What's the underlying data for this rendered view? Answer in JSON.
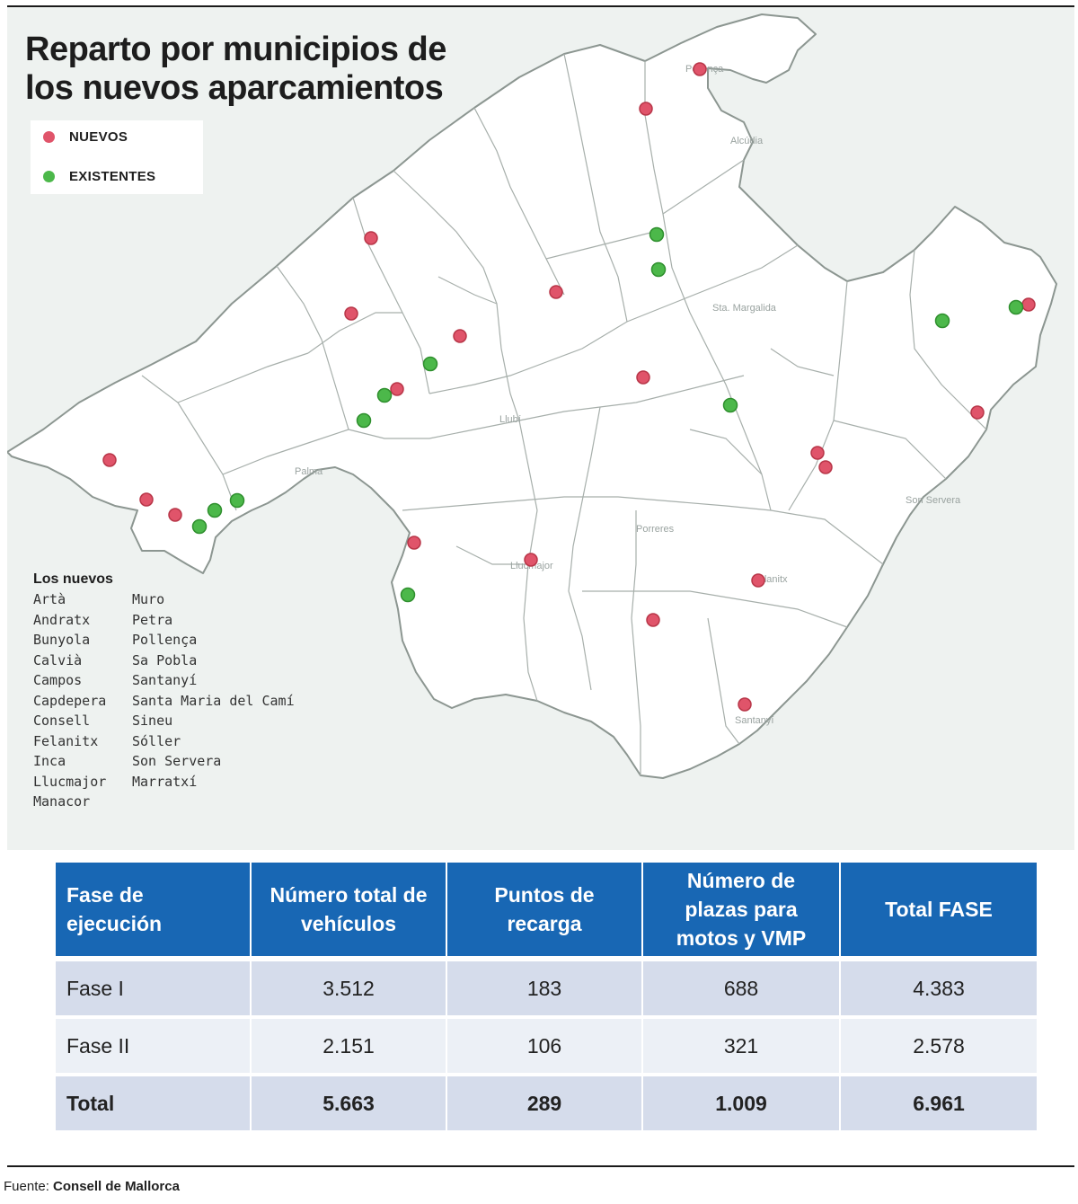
{
  "title": "Reparto por municipios de los nuevos aparcamientos",
  "legend": {
    "nuevos": {
      "label": "NUEVOS",
      "color": "#e0546a"
    },
    "existentes": {
      "label": "EXISTENTES",
      "color": "#4cb84a"
    }
  },
  "new_list": {
    "heading": "Los nuevos",
    "col1": [
      "Artà",
      "Andratx",
      "Bunyola",
      "Calvià",
      "Campos",
      "Capdepera",
      "Consell",
      "Felanitx",
      "Inca",
      "Llucmajor",
      "Manacor"
    ],
    "col2": [
      "Muro",
      "Petra",
      "Pollença",
      "Sa Pobla",
      "Santanyí",
      "Santa Maria del Camí",
      "Sineu",
      "Sóller",
      "Son Servera",
      "Marratxí"
    ]
  },
  "table": {
    "headers": [
      "Fase de ejecución",
      "Número total de vehículos",
      "Puntos de recarga",
      "Número de plazas para motos y VMP",
      "Total FASE"
    ],
    "rows": [
      [
        "Fase I",
        "3.512",
        "183",
        "688",
        "4.383"
      ],
      [
        "Fase II",
        "2.151",
        "106",
        "321",
        "2.578"
      ],
      [
        "Total",
        "5.663",
        "289",
        "1.009",
        "6.961"
      ]
    ]
  },
  "source": {
    "label": "Fuente:",
    "value": "Consell de Mallorca"
  }
}
